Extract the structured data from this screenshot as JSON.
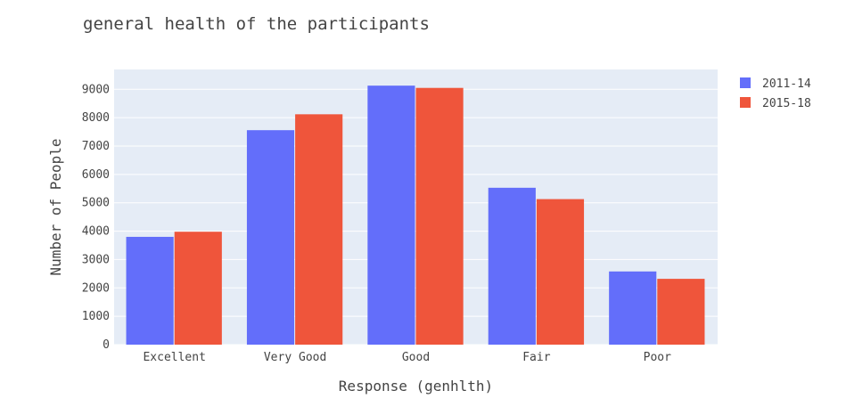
{
  "chart_data": {
    "type": "bar",
    "title": "general health of the participants",
    "xlabel": "Response (genhlth)",
    "ylabel": "Number of People",
    "categories": [
      "Excellent",
      "Very Good",
      "Good",
      "Fair",
      "Poor"
    ],
    "series": [
      {
        "name": "2011-14",
        "color": "#636efa",
        "values": [
          3800,
          7560,
          9130,
          5530,
          2580
        ]
      },
      {
        "name": "2015-18",
        "color": "#ef553b",
        "values": [
          3980,
          8120,
          9050,
          5130,
          2320
        ]
      }
    ],
    "ylim": [
      0,
      9700
    ],
    "yticks": [
      0,
      1000,
      2000,
      3000,
      4000,
      5000,
      6000,
      7000,
      8000,
      9000
    ],
    "grid": true,
    "legend_position": "top-right",
    "plot_background": "#e5ecf6"
  }
}
